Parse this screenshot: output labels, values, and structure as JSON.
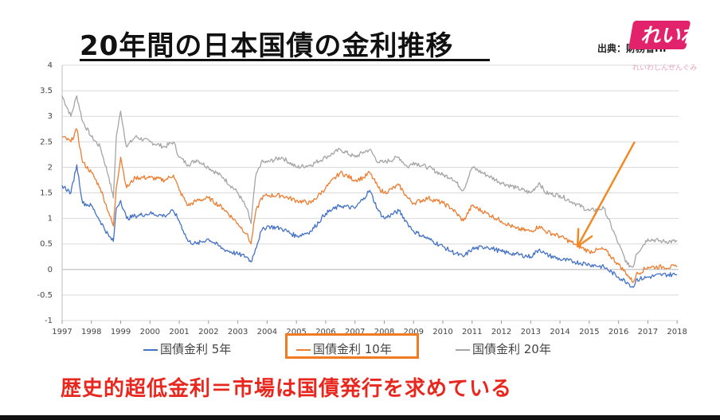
{
  "header": {
    "title": "20年間の日本国債の金利推移",
    "source": "出典：財務省HP"
  },
  "logo": {
    "text": "れいわ",
    "subtext": "れいわしんせんぐみ",
    "color": "#e2226b"
  },
  "conclusion": "歴史的超低金利＝市場は国債発行を求めている",
  "chart_data": {
    "type": "line",
    "title": "",
    "xlabel": "",
    "ylabel": "",
    "xlim": [
      1997,
      2018.05
    ],
    "ylim": [
      -1,
      4
    ],
    "y_ticks": [
      -1,
      -0.5,
      0,
      0.5,
      1,
      1.5,
      2,
      2.5,
      3,
      3.5,
      4
    ],
    "y_tick_labels": [
      "-1",
      "-0.5",
      "0",
      "0.5",
      "1",
      "1.5",
      "2",
      "2.5",
      "3",
      "3.5",
      "4"
    ],
    "x_ticks": [
      1997,
      1998,
      1999,
      2000,
      2001,
      2002,
      2003,
      2004,
      2005,
      2006,
      2007,
      2008,
      2009,
      2010,
      2011,
      2012,
      2013,
      2014,
      2015,
      2016,
      2017,
      2018
    ],
    "x_tick_labels": [
      "1997",
      "1998",
      "1999",
      "2000",
      "2001",
      "2002",
      "2003",
      "2004",
      "2005",
      "2006",
      "2007",
      "2008",
      "2009",
      "2010",
      "2011",
      "2012",
      "2013",
      "2014",
      "2015",
      "2016",
      "2017",
      "2018"
    ],
    "grid": true,
    "legend_position": "bottom",
    "highlighted_series": "国債金利 10年",
    "series": [
      {
        "name": "国債金利 5年",
        "color": "#4472c4",
        "x": [
          1997,
          1997.3,
          1997.5,
          1997.7,
          1998,
          1998.3,
          1998.6,
          1998.75,
          1998.85,
          1999,
          1999.2,
          1999.5,
          2000,
          2000.5,
          2000.8,
          2001,
          2001.3,
          2001.6,
          2002,
          2002.5,
          2003,
          2003.3,
          2003.45,
          2003.6,
          2003.8,
          2004,
          2004.5,
          2005,
          2005.5,
          2006,
          2006.5,
          2007,
          2007.3,
          2007.5,
          2007.8,
          2008,
          2008.5,
          2008.8,
          2009,
          2009.5,
          2010,
          2010.3,
          2010.7,
          2011,
          2011.5,
          2012,
          2012.5,
          2013,
          2013.3,
          2013.5,
          2014,
          2014.5,
          2015,
          2015.5,
          2016,
          2016.3,
          2016.5,
          2016.6,
          2017,
          2017.5,
          2018
        ],
        "values": [
          1.65,
          1.5,
          2.05,
          1.3,
          1.25,
          0.95,
          0.65,
          0.55,
          1.2,
          1.35,
          1.0,
          1.05,
          1.1,
          1.05,
          1.15,
          0.95,
          0.55,
          0.5,
          0.6,
          0.4,
          0.3,
          0.25,
          0.15,
          0.4,
          0.75,
          0.85,
          0.8,
          0.65,
          0.75,
          1.1,
          1.25,
          1.2,
          1.4,
          1.55,
          1.15,
          1.0,
          1.15,
          0.9,
          0.75,
          0.6,
          0.45,
          0.35,
          0.25,
          0.4,
          0.45,
          0.35,
          0.3,
          0.25,
          0.4,
          0.3,
          0.2,
          0.15,
          0.1,
          0.05,
          -0.15,
          -0.25,
          -0.35,
          -0.2,
          -0.15,
          -0.1,
          -0.1
        ]
      },
      {
        "name": "国債金利 10年",
        "color": "#ed7d31",
        "x": [
          1997,
          1997.3,
          1997.5,
          1997.7,
          1998,
          1998.3,
          1998.6,
          1998.75,
          1998.85,
          1999,
          1999.2,
          1999.5,
          2000,
          2000.5,
          2000.8,
          2001,
          2001.3,
          2001.6,
          2002,
          2002.5,
          2003,
          2003.3,
          2003.45,
          2003.6,
          2003.8,
          2004,
          2004.5,
          2005,
          2005.5,
          2006,
          2006.5,
          2007,
          2007.3,
          2007.5,
          2007.8,
          2008,
          2008.5,
          2008.8,
          2009,
          2009.5,
          2010,
          2010.3,
          2010.7,
          2011,
          2011.5,
          2012,
          2012.5,
          2013,
          2013.3,
          2013.5,
          2014,
          2014.5,
          2015,
          2015.5,
          2016,
          2016.3,
          2016.5,
          2016.6,
          2017,
          2017.5,
          2018
        ],
        "values": [
          2.6,
          2.5,
          2.75,
          2.1,
          1.9,
          1.6,
          1.1,
          0.85,
          1.6,
          2.2,
          1.6,
          1.8,
          1.8,
          1.75,
          1.85,
          1.55,
          1.25,
          1.35,
          1.4,
          1.2,
          0.9,
          0.7,
          0.5,
          1.1,
          1.4,
          1.45,
          1.45,
          1.35,
          1.3,
          1.6,
          1.9,
          1.75,
          1.8,
          1.9,
          1.6,
          1.5,
          1.65,
          1.4,
          1.3,
          1.4,
          1.3,
          1.2,
          0.95,
          1.25,
          1.1,
          0.95,
          0.8,
          0.75,
          0.85,
          0.75,
          0.65,
          0.5,
          0.35,
          0.4,
          0.1,
          -0.1,
          -0.25,
          -0.1,
          0.05,
          0.05,
          0.05
        ]
      },
      {
        "name": "国債金利 20年",
        "color": "#a5a5a5",
        "x": [
          1997,
          1997.3,
          1997.5,
          1997.7,
          1998,
          1998.3,
          1998.6,
          1998.75,
          1998.85,
          1999,
          1999.2,
          1999.5,
          2000,
          2000.5,
          2000.8,
          2001,
          2001.3,
          2001.6,
          2002,
          2002.5,
          2003,
          2003.3,
          2003.45,
          2003.6,
          2003.8,
          2004,
          2004.5,
          2005,
          2005.5,
          2006,
          2006.5,
          2007,
          2007.3,
          2007.5,
          2007.8,
          2008,
          2008.5,
          2008.8,
          2009,
          2009.5,
          2010,
          2010.3,
          2010.7,
          2011,
          2011.5,
          2012,
          2012.5,
          2013,
          2013.3,
          2013.5,
          2014,
          2014.5,
          2015,
          2015.5,
          2016,
          2016.3,
          2016.5,
          2016.6,
          2017,
          2017.5,
          2018
        ],
        "values": [
          3.4,
          3.0,
          3.4,
          2.9,
          2.6,
          2.4,
          1.8,
          1.4,
          2.6,
          3.1,
          2.4,
          2.6,
          2.5,
          2.4,
          2.5,
          2.2,
          2.05,
          2.15,
          2.0,
          1.8,
          1.5,
          1.2,
          0.9,
          1.8,
          2.1,
          2.1,
          2.2,
          2.0,
          2.05,
          2.2,
          2.35,
          2.2,
          2.3,
          2.35,
          2.1,
          2.1,
          2.2,
          2.0,
          2.1,
          2.0,
          1.85,
          1.8,
          1.55,
          2.0,
          1.85,
          1.7,
          1.6,
          1.5,
          1.7,
          1.5,
          1.45,
          1.3,
          1.15,
          1.2,
          0.5,
          0.1,
          0.05,
          0.3,
          0.6,
          0.55,
          0.55
        ]
      }
    ],
    "annotation_arrow": {
      "color": "#f08a24",
      "from": [
        2016.55,
        2.5
      ],
      "to": [
        2014.6,
        0.45
      ]
    }
  }
}
